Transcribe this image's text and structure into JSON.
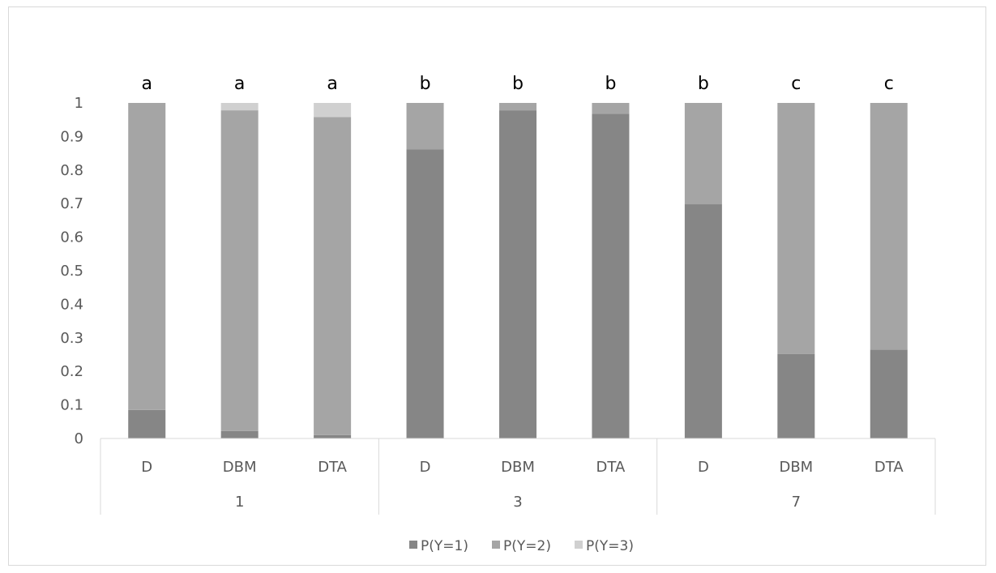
{
  "chart_data": {
    "type": "bar",
    "stacked": true,
    "ylim": [
      0,
      1
    ],
    "yticks": [
      "0",
      "0.1",
      "0.2",
      "0.3",
      "0.4",
      "0.5",
      "0.6",
      "0.7",
      "0.8",
      "0.9",
      "1"
    ],
    "grid": false,
    "legend_position": "bottom",
    "groups": [
      {
        "label": "1",
        "categories": [
          "D",
          "DBM",
          "DTA"
        ]
      },
      {
        "label": "3",
        "categories": [
          "D",
          "DBM",
          "DTA"
        ]
      },
      {
        "label": "7",
        "categories": [
          "D",
          "DBM",
          "DTA"
        ]
      }
    ],
    "significance_letters": [
      "a",
      "a",
      "a",
      "b",
      "b",
      "b",
      "b",
      "c",
      "c"
    ],
    "series": [
      {
        "name": "P(Y=1)",
        "color": "#868686",
        "values": [
          0.085,
          0.022,
          0.01,
          0.862,
          0.978,
          0.968,
          0.698,
          0.252,
          0.265
        ]
      },
      {
        "name": "P(Y=2)",
        "color": "#a5a5a5",
        "values": [
          0.915,
          0.956,
          0.948,
          0.138,
          0.022,
          0.032,
          0.302,
          0.748,
          0.735
        ]
      },
      {
        "name": "P(Y=3)",
        "color": "#d0d0d0",
        "values": [
          0.0,
          0.022,
          0.042,
          0.0,
          0.0,
          0.0,
          0.0,
          0.0,
          0.0
        ]
      }
    ]
  }
}
